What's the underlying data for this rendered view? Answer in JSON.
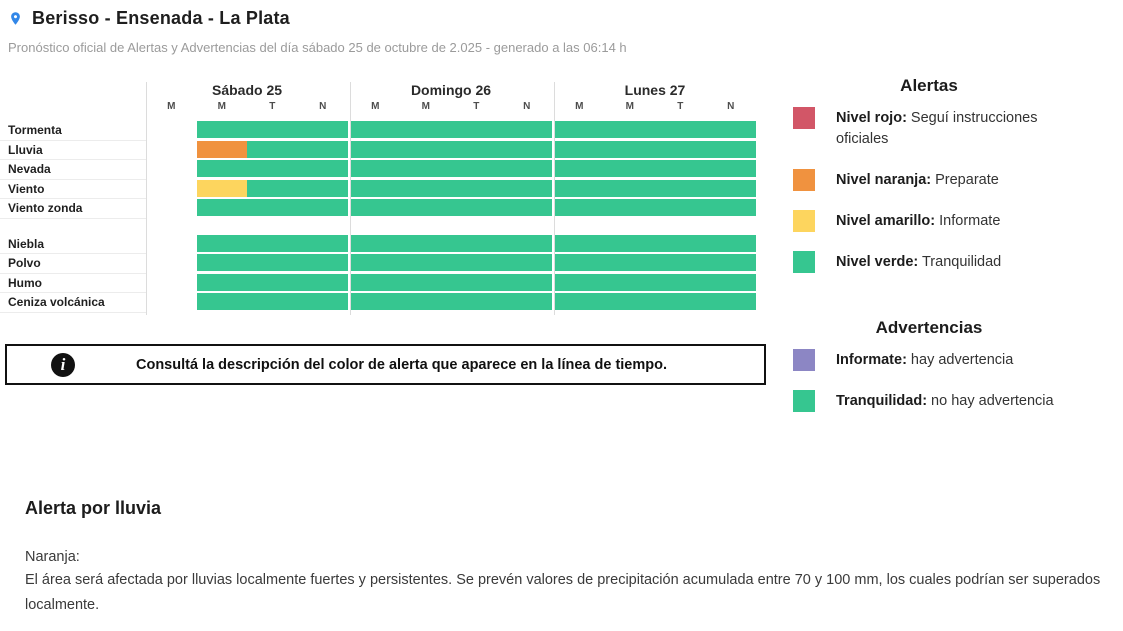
{
  "header": {
    "title": "Berisso - Ensenada - La Plata",
    "subtitle": "Pronóstico oficial de Alertas y Advertencias del día sábado 25 de octubre de 2.025 - generado a las 06:14 h"
  },
  "colors": {
    "green": "#36c690",
    "orange": "#f0923f",
    "yellow": "#fdd55e",
    "red": "#d25667",
    "purple": "#8c86c4",
    "pin": "#3287e8"
  },
  "timeline": {
    "days": [
      "Sábado 25",
      "Domingo 26",
      "Lunes 27"
    ],
    "periods": [
      "M",
      "M",
      "T",
      "N"
    ],
    "groups": [
      {
        "rows": [
          {
            "label": "Tormenta",
            "days": [
              [
                "none",
                "green",
                "green",
                "green"
              ],
              [
                "green",
                "green",
                "green",
                "green"
              ],
              [
                "green",
                "green",
                "green",
                "green"
              ]
            ]
          },
          {
            "label": "Lluvia",
            "days": [
              [
                "none",
                "orange",
                "green",
                "green"
              ],
              [
                "green",
                "green",
                "green",
                "green"
              ],
              [
                "green",
                "green",
                "green",
                "green"
              ]
            ]
          },
          {
            "label": "Nevada",
            "days": [
              [
                "none",
                "green",
                "green",
                "green"
              ],
              [
                "green",
                "green",
                "green",
                "green"
              ],
              [
                "green",
                "green",
                "green",
                "green"
              ]
            ]
          },
          {
            "label": "Viento",
            "days": [
              [
                "none",
                "yellow",
                "green",
                "green"
              ],
              [
                "green",
                "green",
                "green",
                "green"
              ],
              [
                "green",
                "green",
                "green",
                "green"
              ]
            ]
          },
          {
            "label": "Viento zonda",
            "days": [
              [
                "none",
                "green",
                "green",
                "green"
              ],
              [
                "green",
                "green",
                "green",
                "green"
              ],
              [
                "green",
                "green",
                "green",
                "green"
              ]
            ]
          }
        ]
      },
      {
        "rows": [
          {
            "label": "Niebla",
            "days": [
              [
                "none",
                "green",
                "green",
                "green"
              ],
              [
                "green",
                "green",
                "green",
                "green"
              ],
              [
                "green",
                "green",
                "green",
                "green"
              ]
            ]
          },
          {
            "label": "Polvo",
            "days": [
              [
                "none",
                "green",
                "green",
                "green"
              ],
              [
                "green",
                "green",
                "green",
                "green"
              ],
              [
                "green",
                "green",
                "green",
                "green"
              ]
            ]
          },
          {
            "label": "Humo",
            "days": [
              [
                "none",
                "green",
                "green",
                "green"
              ],
              [
                "green",
                "green",
                "green",
                "green"
              ],
              [
                "green",
                "green",
                "green",
                "green"
              ]
            ]
          },
          {
            "label": "Ceniza volcánica",
            "days": [
              [
                "none",
                "green",
                "green",
                "green"
              ],
              [
                "green",
                "green",
                "green",
                "green"
              ],
              [
                "green",
                "green",
                "green",
                "green"
              ]
            ]
          }
        ]
      }
    ]
  },
  "legend": {
    "alerts": {
      "title": "Alertas",
      "items": [
        {
          "color": "red",
          "label": "Nivel rojo:",
          "text": "Seguí instrucciones oficiales"
        },
        {
          "color": "orange",
          "label": "Nivel naranja:",
          "text": "Preparate"
        },
        {
          "color": "yellow",
          "label": "Nivel amarillo:",
          "text": "Informate"
        },
        {
          "color": "green",
          "label": "Nivel verde:",
          "text": "Tranquilidad"
        }
      ]
    },
    "warnings": {
      "title": "Advertencias",
      "items": [
        {
          "color": "purple",
          "label": "Informate:",
          "text": "hay advertencia"
        },
        {
          "color": "green",
          "label": "Tranquilidad:",
          "text": "no hay advertencia"
        }
      ]
    }
  },
  "info_box": {
    "text": "Consultá la descripción del color de alerta que aparece en la línea de tiempo."
  },
  "alert_detail": {
    "title": "Alerta por lluvia",
    "level": "Naranja:",
    "description": "El área será afectada por lluvias localmente fuertes y persistentes. Se prevén valores de precipitación acumulada entre 70 y 100 mm, los cuales podrían ser superados localmente."
  }
}
